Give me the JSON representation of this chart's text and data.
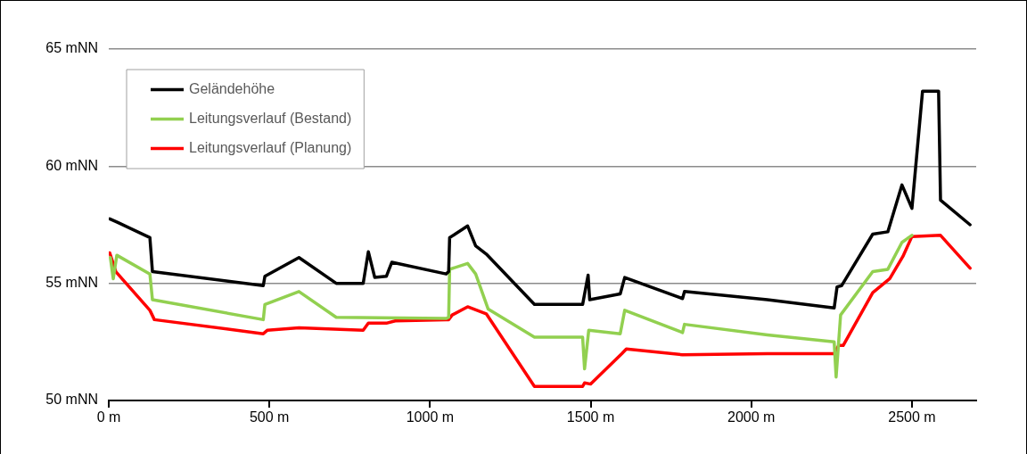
{
  "chart_data": {
    "type": "line",
    "xlim": [
      0,
      2700
    ],
    "xticks": [
      {
        "value": 0,
        "label": "0 m"
      },
      {
        "value": 500,
        "label": "500 m"
      },
      {
        "value": 1000,
        "label": "1000 m"
      },
      {
        "value": 1500,
        "label": "1500 m"
      },
      {
        "value": 2000,
        "label": "2000 m"
      },
      {
        "value": 2500,
        "label": "2500 m"
      }
    ],
    "ylim": [
      50,
      65
    ],
    "yticks": [
      {
        "value": 50,
        "label": "50 mNN"
      },
      {
        "value": 55,
        "label": "55 mNN"
      },
      {
        "value": 60,
        "label": "60 mNN"
      },
      {
        "value": 65,
        "label": "65 mNN"
      }
    ],
    "grid": "y",
    "legend": "top left",
    "marker": "none",
    "line_style": "solid",
    "series": [
      {
        "name": "Geländehöhe",
        "color": "#000000",
        "x": [
          3,
          28,
          128,
          136,
          481,
          486,
          592,
          708,
          792,
          808,
          828,
          864,
          881,
          1050,
          1058,
          1061,
          1117,
          1142,
          1175,
          1325,
          1475,
          1492,
          1497,
          1592,
          1606,
          1786,
          1792,
          2050,
          2258,
          2267,
          2281,
          2378,
          2425,
          2469,
          2500,
          2533,
          2583,
          2589,
          2681
        ],
        "values": [
          57.75,
          57.6,
          56.95,
          55.5,
          54.9,
          55.3,
          56.1,
          55.0,
          55.0,
          56.35,
          55.25,
          55.3,
          55.9,
          55.4,
          55.5,
          56.95,
          57.45,
          56.6,
          56.25,
          54.1,
          54.1,
          55.35,
          54.3,
          54.55,
          55.25,
          54.35,
          54.65,
          54.3,
          53.95,
          54.85,
          54.9,
          57.1,
          57.2,
          59.2,
          58.2,
          63.2,
          63.2,
          58.55,
          57.5
        ]
      },
      {
        "name": "Leitungsverlauf (Bestand)",
        "color": "#92d050",
        "x": [
          5,
          14,
          25,
          128,
          136,
          481,
          486,
          592,
          708,
          1050,
          1058,
          1061,
          1117,
          1142,
          1181,
          1325,
          1475,
          1481,
          1494,
          1592,
          1606,
          1786,
          1792,
          2050,
          2258,
          2264,
          2278,
          2378,
          2425,
          2469,
          2500
        ],
        "values": [
          56.1,
          55.2,
          56.2,
          55.4,
          54.3,
          53.45,
          54.1,
          54.65,
          53.55,
          53.5,
          53.55,
          55.6,
          55.85,
          55.4,
          53.9,
          52.7,
          52.7,
          51.35,
          53.0,
          52.85,
          53.85,
          52.9,
          53.25,
          52.8,
          52.5,
          51.0,
          53.65,
          55.5,
          55.6,
          56.75,
          57.05
        ]
      },
      {
        "name": "Leitungsverlauf (Planung)",
        "color": "#ff0000",
        "x": [
          3,
          22,
          128,
          142,
          481,
          494,
          592,
          792,
          808,
          864,
          892,
          1050,
          1058,
          1069,
          1117,
          1175,
          1325,
          1475,
          1481,
          1500,
          1597,
          1611,
          1786,
          2050,
          2258,
          2272,
          2286,
          2378,
          2431,
          2472,
          2500,
          2589,
          2681
        ],
        "values": [
          56.3,
          55.5,
          53.85,
          53.45,
          52.85,
          53.0,
          53.1,
          53.0,
          53.3,
          53.3,
          53.4,
          53.45,
          53.45,
          53.65,
          54.0,
          53.7,
          50.6,
          50.6,
          50.75,
          50.7,
          52.0,
          52.2,
          51.95,
          52.0,
          52.0,
          52.35,
          52.35,
          54.6,
          55.2,
          56.15,
          57.0,
          57.05,
          55.65
        ]
      }
    ]
  }
}
